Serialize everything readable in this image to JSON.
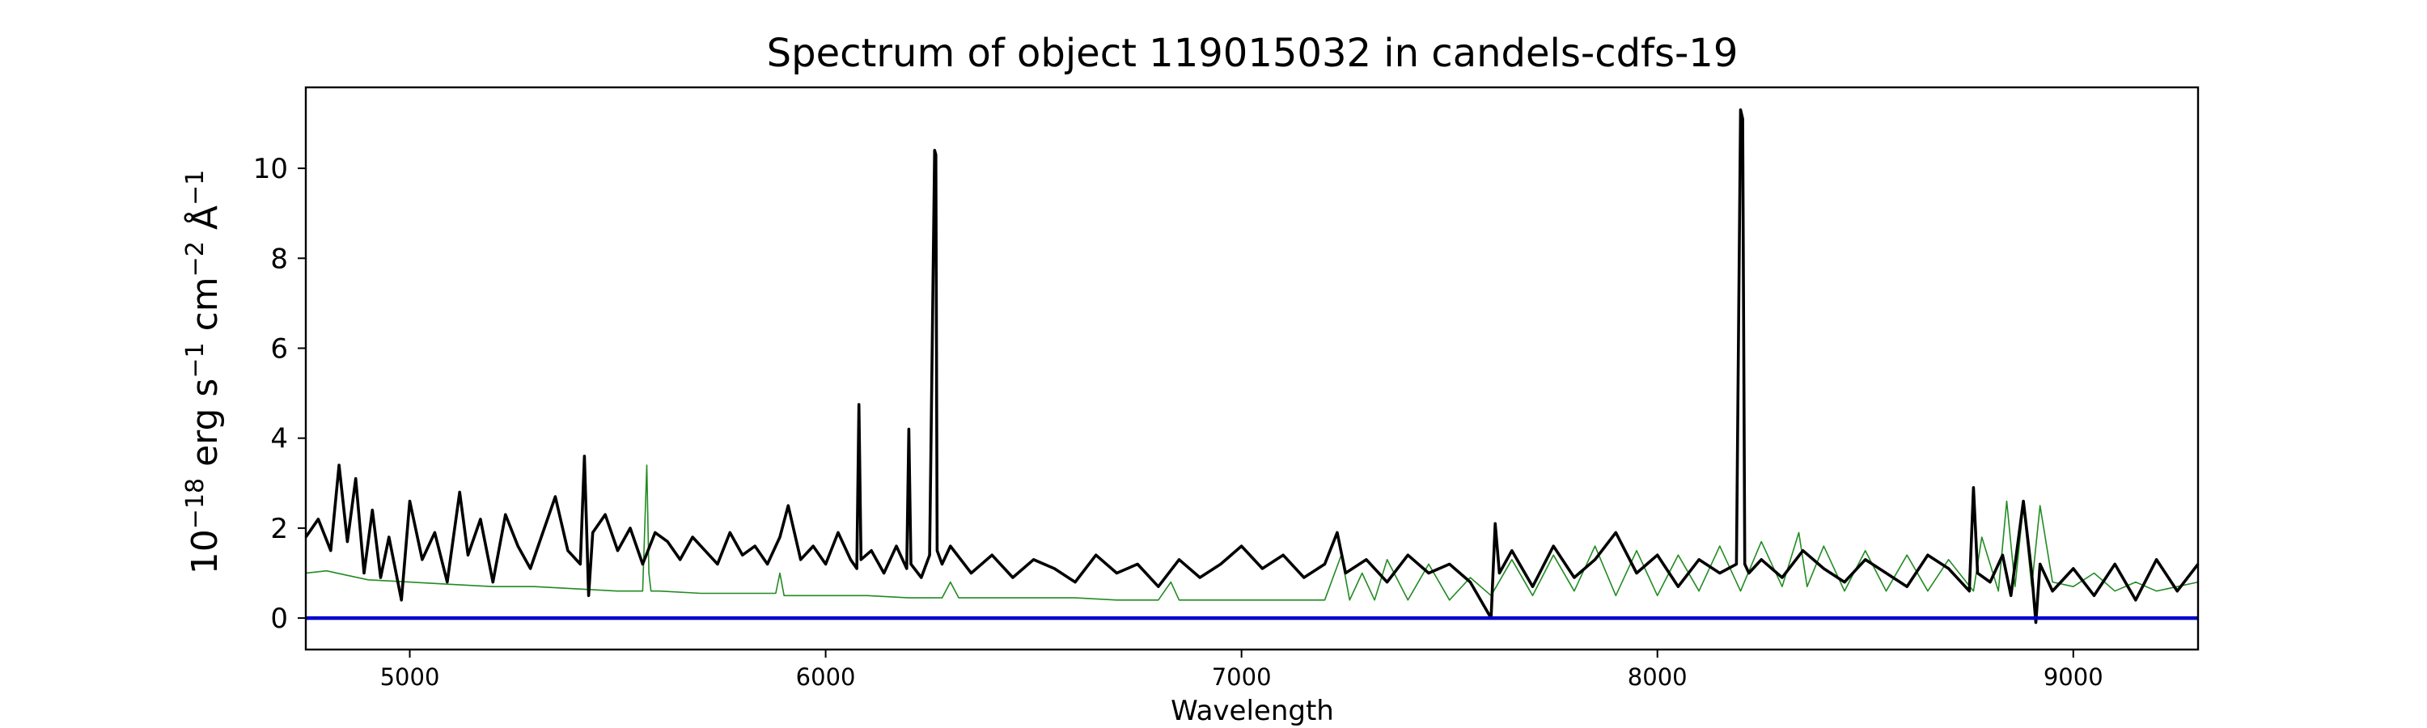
{
  "chart_data": {
    "type": "line",
    "title": "Spectrum of object 119015032 in candels-cdfs-19",
    "xlabel": "Wavelength",
    "ylabel_base": "10",
    "ylabel_exp": "−18",
    "ylabel_erg": " erg s",
    "ylabel_exp_s": "−1",
    "ylabel_cm": " cm",
    "ylabel_exp_cm": "−2",
    "ylabel_ang": " Å",
    "ylabel_exp_ang": "−1",
    "xlim": [
      4750,
      9300
    ],
    "ylim": [
      -0.7,
      11.8
    ],
    "xticks": [
      5000,
      6000,
      7000,
      8000,
      9000
    ],
    "xtick_labels": [
      "5000",
      "6000",
      "7000",
      "8000",
      "9000"
    ],
    "yticks": [
      0,
      2,
      4,
      6,
      8,
      10
    ],
    "ytick_labels": [
      "0",
      "2",
      "4",
      "6",
      "8",
      "10"
    ],
    "grid": false,
    "colors": {
      "flux": "#000000",
      "noise": "#228b22",
      "zero": "#0000cc"
    },
    "series": [
      {
        "role": "flux",
        "x": [
          4750,
          4780,
          4810,
          4830,
          4850,
          4870,
          4890,
          4910,
          4930,
          4950,
          4980,
          5000,
          5030,
          5060,
          5090,
          5120,
          5140,
          5170,
          5200,
          5230,
          5260,
          5290,
          5320,
          5350,
          5380,
          5410,
          5420,
          5430,
          5440,
          5470,
          5500,
          5530,
          5560,
          5590,
          5620,
          5650,
          5680,
          5710,
          5740,
          5770,
          5800,
          5830,
          5860,
          5890,
          5910,
          5940,
          5970,
          6000,
          6030,
          6060,
          6075,
          6080,
          6085,
          6110,
          6140,
          6170,
          6195,
          6200,
          6205,
          6230,
          6250,
          6262,
          6265,
          6268,
          6280,
          6300,
          6350,
          6400,
          6450,
          6500,
          6550,
          6600,
          6650,
          6700,
          6750,
          6800,
          6850,
          6900,
          6950,
          7000,
          7050,
          7100,
          7150,
          7200,
          7230,
          7250,
          7300,
          7350,
          7400,
          7450,
          7500,
          7550,
          7600,
          7610,
          7620,
          7650,
          7700,
          7750,
          7800,
          7850,
          7900,
          7950,
          8000,
          8050,
          8100,
          8150,
          8190,
          8200,
          8205,
          8210,
          8220,
          8250,
          8300,
          8350,
          8400,
          8450,
          8500,
          8550,
          8600,
          8650,
          8700,
          8750,
          8760,
          8770,
          8800,
          8830,
          8850,
          8880,
          8900,
          8910,
          8920,
          8950,
          9000,
          9050,
          9100,
          9150,
          9200,
          9250,
          9300
        ],
        "y": [
          1.8,
          2.2,
          1.5,
          3.4,
          1.7,
          3.1,
          1.0,
          2.4,
          0.9,
          1.8,
          0.4,
          2.6,
          1.3,
          1.9,
          0.8,
          2.8,
          1.4,
          2.2,
          0.8,
          2.3,
          1.6,
          1.1,
          1.9,
          2.7,
          1.5,
          1.2,
          3.6,
          0.5,
          1.9,
          2.3,
          1.5,
          2.0,
          1.2,
          1.9,
          1.7,
          1.3,
          1.8,
          1.5,
          1.2,
          1.9,
          1.4,
          1.6,
          1.2,
          1.8,
          2.5,
          1.3,
          1.6,
          1.2,
          1.9,
          1.3,
          1.1,
          4.75,
          1.3,
          1.5,
          1.0,
          1.6,
          1.1,
          4.2,
          1.2,
          0.9,
          1.4,
          10.4,
          10.3,
          1.5,
          1.2,
          1.6,
          1.0,
          1.4,
          0.9,
          1.3,
          1.1,
          0.8,
          1.4,
          1.0,
          1.2,
          0.7,
          1.3,
          0.9,
          1.2,
          1.6,
          1.1,
          1.4,
          0.9,
          1.2,
          1.9,
          1.0,
          1.3,
          0.8,
          1.4,
          1.0,
          1.2,
          0.8,
          0.0,
          2.1,
          1.0,
          1.5,
          0.7,
          1.6,
          0.9,
          1.3,
          1.9,
          1.0,
          1.4,
          0.7,
          1.3,
          1.0,
          1.2,
          11.3,
          11.1,
          1.2,
          1.0,
          1.3,
          0.9,
          1.5,
          1.1,
          0.8,
          1.3,
          1.0,
          0.7,
          1.4,
          1.1,
          0.6,
          2.9,
          1.0,
          0.8,
          1.4,
          0.5,
          2.6,
          1.0,
          -0.1,
          1.2,
          0.6,
          1.1,
          0.5,
          1.2,
          0.4,
          1.3,
          0.6,
          1.2
        ]
      },
      {
        "role": "noise",
        "x": [
          4750,
          4800,
          4850,
          4900,
          5000,
          5100,
          5200,
          5300,
          5400,
          5500,
          5560,
          5570,
          5575,
          5580,
          5600,
          5700,
          5800,
          5880,
          5890,
          5900,
          6000,
          6100,
          6200,
          6280,
          6300,
          6320,
          6400,
          6500,
          6600,
          6700,
          6800,
          6830,
          6850,
          6900,
          7000,
          7100,
          7200,
          7240,
          7260,
          7290,
          7320,
          7350,
          7400,
          7450,
          7500,
          7550,
          7600,
          7650,
          7700,
          7750,
          7800,
          7850,
          7900,
          7950,
          8000,
          8050,
          8100,
          8150,
          8200,
          8250,
          8300,
          8340,
          8360,
          8400,
          8450,
          8500,
          8550,
          8600,
          8650,
          8700,
          8760,
          8780,
          8820,
          8840,
          8860,
          8880,
          8900,
          8920,
          8950,
          9000,
          9050,
          9100,
          9150,
          9200,
          9250,
          9300
        ],
        "y": [
          1.0,
          1.05,
          0.95,
          0.85,
          0.8,
          0.75,
          0.7,
          0.7,
          0.65,
          0.6,
          0.6,
          3.4,
          1.0,
          0.6,
          0.6,
          0.55,
          0.55,
          0.55,
          1.0,
          0.5,
          0.5,
          0.5,
          0.45,
          0.45,
          0.8,
          0.45,
          0.45,
          0.45,
          0.45,
          0.4,
          0.4,
          0.8,
          0.4,
          0.4,
          0.4,
          0.4,
          0.4,
          1.4,
          0.4,
          1.0,
          0.4,
          1.3,
          0.4,
          1.2,
          0.4,
          0.9,
          0.5,
          1.3,
          0.5,
          1.4,
          0.6,
          1.6,
          0.5,
          1.5,
          0.5,
          1.4,
          0.6,
          1.6,
          0.6,
          1.7,
          0.7,
          1.9,
          0.7,
          1.6,
          0.6,
          1.5,
          0.6,
          1.4,
          0.6,
          1.3,
          0.6,
          1.8,
          0.6,
          2.6,
          0.7,
          2.5,
          0.7,
          2.5,
          0.8,
          0.7,
          1.0,
          0.6,
          0.8,
          0.6,
          0.7,
          0.8
        ]
      }
    ]
  }
}
